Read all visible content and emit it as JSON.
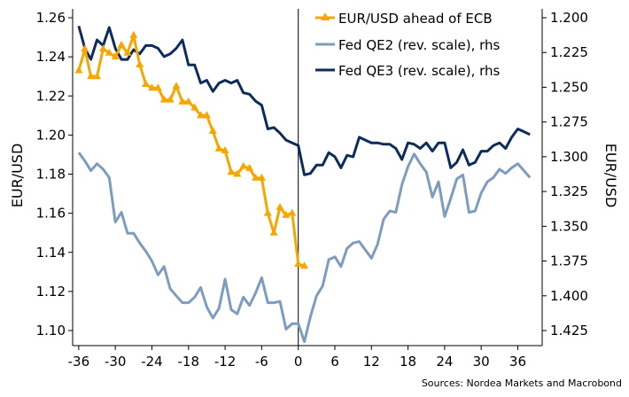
{
  "chart_data": {
    "type": "line",
    "title": "",
    "xlabel": "",
    "ylabel_left": "EUR/USD",
    "ylabel_right": "EUR/USD",
    "xlim": [
      -37,
      40
    ],
    "ylim_left": [
      1.1,
      1.26
    ],
    "ylim_right": [
      1.2,
      1.425
    ],
    "right_axis_reversed": true,
    "x_ticks": [
      -36,
      -30,
      -24,
      -18,
      -12,
      -6,
      0,
      6,
      12,
      18,
      24,
      30,
      36
    ],
    "y_ticks_left": [
      "1.10",
      "1.12",
      "1.14",
      "1.16",
      "1.18",
      "1.20",
      "1.22",
      "1.24",
      "1.26"
    ],
    "y_ticks_right": [
      "1.200",
      "1.225",
      "1.250",
      "1.275",
      "1.300",
      "1.325",
      "1.350",
      "1.375",
      "1.400",
      "1.425"
    ],
    "grid": false,
    "vertical_line_x": 0,
    "legend_position": "top-right",
    "series": [
      {
        "name": "EUR/USD ahead of ECB",
        "axis": "left",
        "color": "#F7A600",
        "marker": "triangle",
        "x": [
          -36,
          -35,
          -34,
          -33,
          -32,
          -31,
          -30,
          -29,
          -28,
          -27,
          -26,
          -25,
          -24,
          -23,
          -22,
          -21,
          -20,
          -19,
          -18,
          -17,
          -16,
          -15,
          -14,
          -13,
          -12,
          -11,
          -10,
          -9,
          -8,
          -7,
          -6,
          -5,
          -4,
          -3,
          -2,
          -1,
          0,
          1
        ],
        "values": [
          1.233,
          1.244,
          1.23,
          1.23,
          1.244,
          1.242,
          1.24,
          1.246,
          1.242,
          1.251,
          1.236,
          1.226,
          1.224,
          1.224,
          1.218,
          1.218,
          1.225,
          1.217,
          1.217,
          1.214,
          1.21,
          1.21,
          1.202,
          1.193,
          1.192,
          1.181,
          1.18,
          1.184,
          1.183,
          1.178,
          1.178,
          1.16,
          1.15,
          1.163,
          1.159,
          1.16,
          1.134,
          1.133
        ]
      },
      {
        "name": "Fed QE2 (rev. scale), rhs",
        "axis": "right",
        "color": "#7D9CC0",
        "marker": "none",
        "x": [
          -36,
          -35,
          -34,
          -33,
          -32,
          -31,
          -30,
          -29,
          -28,
          -27,
          -26,
          -25,
          -24,
          -23,
          -22,
          -21,
          -20,
          -19,
          -18,
          -17,
          -16,
          -15,
          -14,
          -13,
          -12,
          -11,
          -10,
          -9,
          -8,
          -7,
          -6,
          -5,
          -4,
          -3,
          -2,
          -1,
          0,
          1,
          2,
          3,
          4,
          5,
          6,
          7,
          8,
          9,
          10,
          11,
          12,
          13,
          14,
          15,
          16,
          17,
          18,
          19,
          20,
          21,
          22,
          23,
          24,
          25,
          26,
          27,
          28,
          29,
          30,
          31,
          32,
          33,
          34,
          35,
          36,
          37,
          38
        ],
        "values": [
          1.297,
          1.303,
          1.31,
          1.305,
          1.309,
          1.315,
          1.347,
          1.34,
          1.355,
          1.355,
          1.362,
          1.368,
          1.375,
          1.385,
          1.379,
          1.395,
          1.4,
          1.405,
          1.405,
          1.401,
          1.394,
          1.408,
          1.416,
          1.409,
          1.388,
          1.41,
          1.413,
          1.401,
          1.407,
          1.398,
          1.387,
          1.405,
          1.405,
          1.404,
          1.424,
          1.42,
          1.42,
          1.433,
          1.415,
          1.4,
          1.393,
          1.374,
          1.372,
          1.379,
          1.366,
          1.362,
          1.361,
          1.367,
          1.373,
          1.363,
          1.345,
          1.339,
          1.34,
          1.32,
          1.307,
          1.298,
          1.305,
          1.311,
          1.329,
          1.318,
          1.343,
          1.33,
          1.316,
          1.313,
          1.34,
          1.339,
          1.326,
          1.318,
          1.315,
          1.309,
          1.312,
          1.308,
          1.305,
          1.31,
          1.315
        ]
      },
      {
        "name": "Fed QE3 (rev. scale), rhs",
        "axis": "right",
        "color": "#0C2C5C",
        "marker": "none",
        "x": [
          -36,
          -35,
          -34,
          -33,
          -32,
          -31,
          -30,
          -29,
          -28,
          -27,
          -26,
          -25,
          -24,
          -23,
          -22,
          -21,
          -20,
          -19,
          -18,
          -17,
          -16,
          -15,
          -14,
          -13,
          -12,
          -11,
          -10,
          -9,
          -8,
          -7,
          -6,
          -5,
          -4,
          -3,
          -2,
          -1,
          0,
          1,
          2,
          3,
          4,
          5,
          6,
          7,
          8,
          9,
          10,
          11,
          12,
          13,
          14,
          15,
          16,
          17,
          18,
          19,
          20,
          21,
          22,
          23,
          24,
          25,
          26,
          27,
          28,
          29,
          30,
          31,
          32,
          33,
          34,
          35,
          36,
          37,
          38
        ],
        "values": [
          1.206,
          1.222,
          1.23,
          1.216,
          1.22,
          1.207,
          1.222,
          1.23,
          1.23,
          1.223,
          1.226,
          1.22,
          1.22,
          1.222,
          1.228,
          1.226,
          1.222,
          1.216,
          1.234,
          1.234,
          1.247,
          1.245,
          1.253,
          1.247,
          1.245,
          1.247,
          1.245,
          1.254,
          1.255,
          1.26,
          1.263,
          1.28,
          1.279,
          1.283,
          1.288,
          1.29,
          1.292,
          1.313,
          1.312,
          1.306,
          1.306,
          1.297,
          1.3,
          1.308,
          1.299,
          1.3,
          1.286,
          1.288,
          1.29,
          1.29,
          1.291,
          1.291,
          1.294,
          1.302,
          1.29,
          1.291,
          1.294,
          1.29,
          1.296,
          1.29,
          1.29,
          1.308,
          1.304,
          1.295,
          1.306,
          1.304,
          1.296,
          1.296,
          1.292,
          1.29,
          1.294,
          1.286,
          1.28,
          1.282,
          1.284
        ]
      }
    ],
    "source": "Sources: Nordea Markets and Macrobond"
  }
}
